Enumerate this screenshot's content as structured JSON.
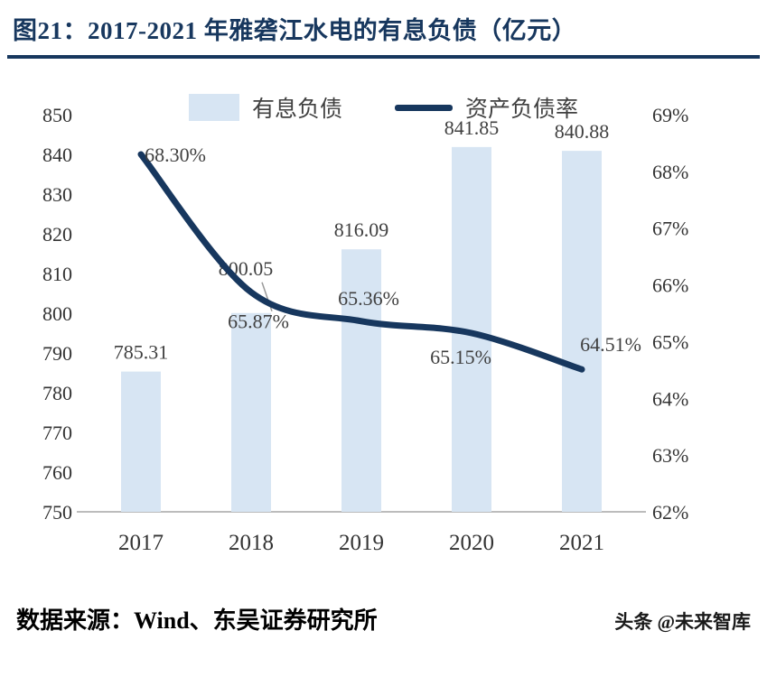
{
  "header": {
    "title": "图21：2017-2021 年雅砻江水电的有息负债（亿元）"
  },
  "footer": {
    "source": "数据来源：Wind、东吴证券研究所",
    "watermark": "头条 @未来智库"
  },
  "colors": {
    "accent": "#17375E",
    "bar": "#D7E5F3",
    "line": "#17375E",
    "axis_line": "#A6A6A6",
    "label_text": "#404040"
  },
  "chart_data": {
    "type": "bar",
    "subtype": "bar+line dual axis",
    "title": "图21：2017-2021 年雅砻江水电的有息负债（亿元）",
    "categories": [
      "2017",
      "2018",
      "2019",
      "2020",
      "2021"
    ],
    "series": [
      {
        "name": "有息负债",
        "type": "bar",
        "axis": "left",
        "values": [
          785.31,
          800.05,
          816.09,
          841.85,
          840.88
        ],
        "labels": [
          "785.31",
          "800.05",
          "816.09",
          "841.85",
          "840.88"
        ]
      },
      {
        "name": "资产负债率",
        "type": "line",
        "axis": "right",
        "values": [
          68.3,
          65.87,
          65.36,
          65.15,
          64.51
        ],
        "labels": [
          "68.30%",
          "65.87%",
          "65.36%",
          "65.15%",
          "64.51%"
        ]
      }
    ],
    "left_axis": {
      "min": 750,
      "max": 850,
      "ticks": [
        750,
        760,
        770,
        780,
        790,
        800,
        810,
        820,
        830,
        840,
        850
      ]
    },
    "right_axis": {
      "min": 62,
      "max": 69,
      "ticks": [
        "62%",
        "63%",
        "64%",
        "65%",
        "66%",
        "67%",
        "68%",
        "69%"
      ]
    },
    "grid": false,
    "legend_position": "top-center"
  }
}
